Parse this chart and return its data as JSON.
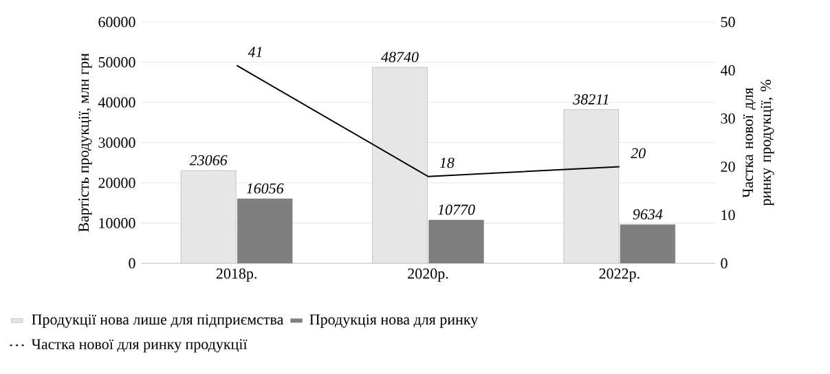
{
  "chart_data": {
    "type": "bar",
    "categories": [
      "2018р.",
      "2020р.",
      "2022р."
    ],
    "ylabel": "Вартість продукції, млн грн",
    "y2label": "Частка нової для ринку продукції, %",
    "ylim": [
      0,
      60000
    ],
    "yticks": [
      0,
      10000,
      20000,
      30000,
      40000,
      50000,
      60000
    ],
    "y2lim": [
      0,
      50
    ],
    "y2ticks": [
      0,
      10,
      20,
      30,
      40,
      50
    ],
    "series": [
      {
        "name": "Продукції нова лише для підприємства",
        "color": "#e6e6e6",
        "values": [
          23066,
          48740,
          38211
        ]
      },
      {
        "name": "Продукція нова для ринку",
        "color": "#7f7f7f",
        "values": [
          16056,
          10770,
          9634
        ]
      },
      {
        "name": "Частка нової для ринку продукції",
        "type": "line",
        "axis": "y2",
        "color": "#000000",
        "values": [
          41,
          18,
          20
        ]
      }
    ],
    "data_labels": true,
    "grid": "y",
    "legend": "bottom"
  }
}
